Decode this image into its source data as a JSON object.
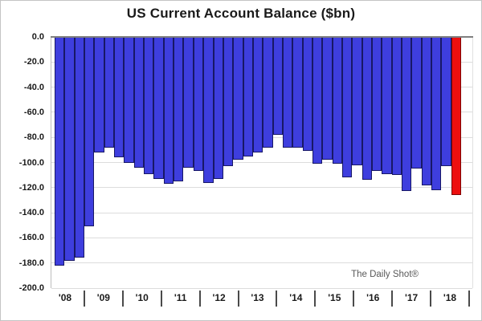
{
  "title": "US Current Account Balance ($bn)",
  "watermark": "The Daily Shot®",
  "y_axis": {
    "tick_labels": [
      "0.0",
      "-20.0",
      "-40.0",
      "-60.0",
      "-80.0",
      "-100.0",
      "-120.0",
      "-140.0",
      "-160.0",
      "-180.0",
      "-200.0"
    ]
  },
  "x_axis": {
    "year_labels": [
      "'08",
      "'09",
      "'10",
      "'11",
      "'12",
      "'13",
      "'14",
      "'15",
      "'16",
      "'17",
      "'18"
    ]
  },
  "colors": {
    "bar_fill": "#3e3ede",
    "bar_border": "#181866",
    "highlight_fill": "#ed0f0f",
    "highlight_border": "#7d0404",
    "gridline": "#dcdcdc",
    "zero_line": "#7f7f7f",
    "axis_text": "#1a1a1a",
    "watermark_text": "#595959"
  },
  "chart_data": {
    "type": "bar",
    "title": "US Current Account Balance ($bn)",
    "xlabel": "",
    "ylabel": "",
    "ylim": [
      -200,
      0
    ],
    "y_tick_step": 20,
    "grid": "horizontal",
    "legend_position": "none",
    "annotation": "The Daily Shot®",
    "x_tick_labels": [
      "'08",
      "'09",
      "'10",
      "'11",
      "'12",
      "'13",
      "'14",
      "'15",
      "'16",
      "'17",
      "'18"
    ],
    "x": [
      "2008 Q1",
      "2008 Q2",
      "2008 Q3",
      "2008 Q4",
      "2009 Q1",
      "2009 Q2",
      "2009 Q3",
      "2009 Q4",
      "2010 Q1",
      "2010 Q2",
      "2010 Q3",
      "2010 Q4",
      "2011 Q1",
      "2011 Q2",
      "2011 Q3",
      "2011 Q4",
      "2012 Q1",
      "2012 Q2",
      "2012 Q3",
      "2012 Q4",
      "2013 Q1",
      "2013 Q2",
      "2013 Q3",
      "2013 Q4",
      "2014 Q1",
      "2014 Q2",
      "2014 Q3",
      "2014 Q4",
      "2015 Q1",
      "2015 Q2",
      "2015 Q3",
      "2015 Q4",
      "2016 Q1",
      "2016 Q2",
      "2016 Q3",
      "2016 Q4",
      "2017 Q1",
      "2017 Q2",
      "2017 Q3",
      "2017 Q4",
      "2018 Q1"
    ],
    "values": [
      -182,
      -178,
      -176,
      -151,
      -92,
      -88,
      -96,
      -100,
      -104,
      -109,
      -113,
      -117,
      -115,
      -104,
      -107,
      -116,
      -113,
      -103,
      -98,
      -95,
      -92,
      -88,
      -78,
      -88,
      -88,
      -91,
      -101,
      -98,
      -101,
      -112,
      -102,
      -114,
      -107,
      -109,
      -110,
      -123,
      -105,
      -118,
      -122,
      -103,
      -126
    ],
    "highlight_last_bar": {
      "label": "2018 Q1",
      "value": -126,
      "color": "#ed0f0f"
    }
  }
}
